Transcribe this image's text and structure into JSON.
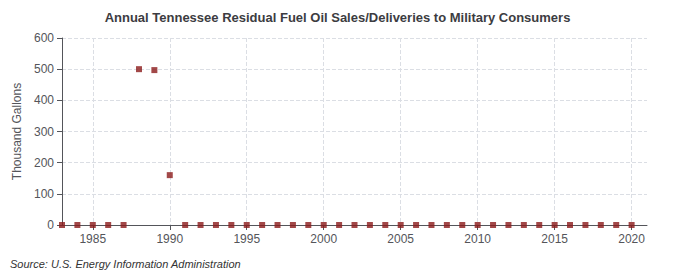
{
  "chart_data": {
    "type": "scatter",
    "title": "Annual Tennessee Residual Fuel Oil Sales/Deliveries to Military Consumers",
    "ylabel": "Thousand Gallons",
    "source": "Source: U.S. Energy Information Administration",
    "x": [
      1983,
      1984,
      1985,
      1986,
      1987,
      1988,
      1989,
      1990,
      1991,
      1992,
      1993,
      1994,
      1995,
      1996,
      1997,
      1998,
      1999,
      2000,
      2001,
      2002,
      2003,
      2004,
      2005,
      2006,
      2007,
      2008,
      2009,
      2010,
      2011,
      2012,
      2013,
      2014,
      2015,
      2016,
      2017,
      2018,
      2019,
      2020
    ],
    "values": [
      0,
      0,
      0,
      0,
      0,
      500,
      497,
      160,
      0,
      0,
      0,
      0,
      0,
      0,
      0,
      0,
      0,
      0,
      0,
      0,
      0,
      0,
      0,
      0,
      0,
      0,
      0,
      0,
      0,
      0,
      0,
      0,
      0,
      0,
      0,
      0,
      0,
      0
    ],
    "color": "#8b1a1a",
    "marker": "square",
    "xlim": [
      1983,
      2021
    ],
    "ylim": [
      0,
      600
    ],
    "xticks": [
      1985,
      1990,
      1995,
      2000,
      2005,
      2010,
      2015,
      2020
    ],
    "yticks": [
      0,
      100,
      200,
      300,
      400,
      500,
      600
    ],
    "grid": true
  }
}
